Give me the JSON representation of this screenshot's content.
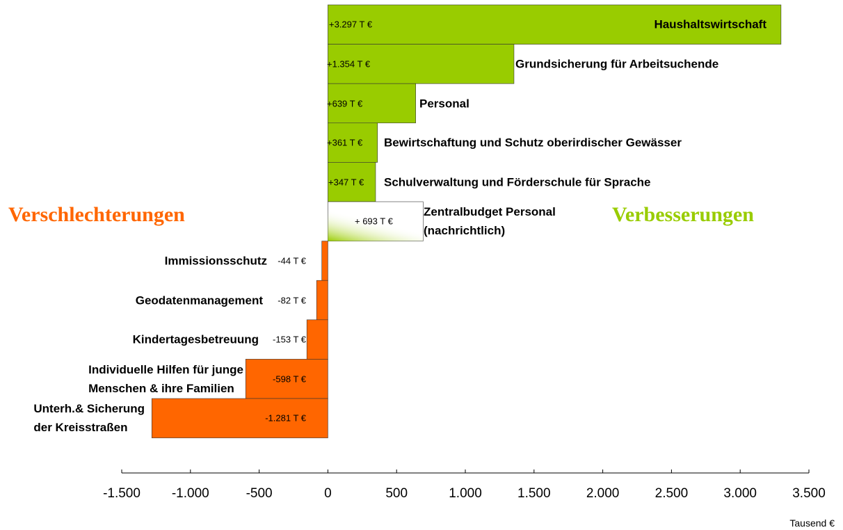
{
  "chart_data": {
    "type": "bar",
    "orientation": "horizontal",
    "categories": [
      "Haushaltswirtschaft",
      "Grundsicherung für Arbeitsuchende",
      "Personal",
      "Bewirtschaftung und Schutz oberirdischer Gewässer",
      "Schulverwaltung und Förderschule für Sprache",
      "Zentralbudget Personal\n(nachrichtlich)",
      "Immissionsschutz",
      "Geodatenmanagement",
      "Kindertagesbetreuung",
      "Individuelle Hilfen für junge\nMenschen & ihre Familien",
      "Unterh.& Sicherung\nder Kreisstraßen"
    ],
    "values": [
      3297,
      1354,
      639,
      361,
      347,
      693,
      -44,
      -82,
      -153,
      -598,
      -1281
    ],
    "value_labels": [
      "+3.297 T €",
      "+1.354 T €",
      "+639 T €",
      "+361 T €",
      "+347 T €",
      "+ 693 T €",
      "-44 T €",
      "-82 T €",
      "-153 T €",
      "-598 T €",
      "-1.281 T €"
    ],
    "colors": [
      "#99cc00",
      "#99cc00",
      "#99cc00",
      "#99cc00",
      "#99cc00",
      "#ffffff",
      "#ff6600",
      "#ff6600",
      "#ff6600",
      "#ff6600",
      "#ff6600"
    ],
    "xlim": [
      -1500,
      3500
    ],
    "xticks": [
      {
        "value": -1500,
        "label": "-1.500"
      },
      {
        "value": -1000,
        "label": "-1.000"
      },
      -500,
      0,
      500,
      {
        "value": 1000,
        "label": "1.000"
      },
      {
        "value": 1500,
        "label": "1.500"
      },
      {
        "value": 2000,
        "label": "2.000"
      },
      {
        "value": 2500,
        "label": "2.500"
      },
      {
        "value": 3000,
        "label": "3.000"
      },
      {
        "value": 3500,
        "label": "3.500"
      }
    ],
    "x_label": "Tausend €",
    "annotations": [
      "Verschlechterungen",
      "Verbesserungen"
    ]
  }
}
